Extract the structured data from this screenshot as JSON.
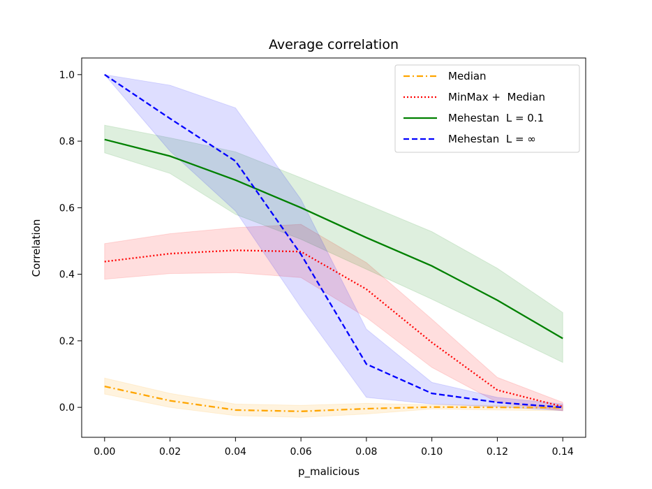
{
  "chart_data": {
    "type": "line",
    "title": "Average correlation",
    "xlabel": "p_malicious",
    "ylabel": "Correlation",
    "xlim": [
      -0.007,
      0.147
    ],
    "ylim": [
      -0.09,
      1.05
    ],
    "xticks": [
      "0.00",
      "0.02",
      "0.04",
      "0.06",
      "0.08",
      "0.10",
      "0.12",
      "0.14"
    ],
    "yticks": [
      "0.0",
      "0.2",
      "0.4",
      "0.6",
      "0.8",
      "1.0"
    ],
    "grid": false,
    "legend_position": "top-right",
    "x": [
      0.0,
      0.02,
      0.04,
      0.06,
      0.08,
      0.1,
      0.12,
      0.14
    ],
    "series": [
      {
        "name": "Median",
        "color": "#ffa500",
        "style": "dashdot",
        "values": [
          0.063,
          0.02,
          -0.008,
          -0.012,
          -0.004,
          0.001,
          0.0,
          -0.001
        ],
        "lower": [
          0.04,
          0.0,
          -0.025,
          -0.03,
          -0.02,
          -0.005,
          -0.008,
          -0.01
        ],
        "upper": [
          0.088,
          0.042,
          0.01,
          0.006,
          0.012,
          0.008,
          0.006,
          0.006
        ]
      },
      {
        "name": "MinMax +  Median",
        "color": "#ff0000",
        "style": "dotted",
        "values": [
          0.438,
          0.462,
          0.472,
          0.468,
          0.355,
          0.195,
          0.052,
          0.002
        ],
        "lower": [
          0.385,
          0.402,
          0.405,
          0.39,
          0.27,
          0.12,
          0.015,
          -0.01
        ],
        "upper": [
          0.492,
          0.522,
          0.54,
          0.55,
          0.435,
          0.265,
          0.09,
          0.015
        ]
      },
      {
        "name": "Mehestan  L = 0.1",
        "color": "#008000",
        "style": "solid",
        "values": [
          0.805,
          0.755,
          0.683,
          0.6,
          0.51,
          0.425,
          0.322,
          0.207
        ],
        "lower": [
          0.765,
          0.703,
          0.58,
          0.505,
          0.415,
          0.325,
          0.23,
          0.135
        ],
        "upper": [
          0.848,
          0.81,
          0.768,
          0.69,
          0.61,
          0.528,
          0.418,
          0.285
        ]
      },
      {
        "name": "Mehestan  L = ∞",
        "color": "#0000ff",
        "style": "dashed",
        "values": [
          1.0,
          0.868,
          0.74,
          0.46,
          0.13,
          0.042,
          0.015,
          0.0
        ],
        "lower": [
          1.0,
          0.77,
          0.59,
          0.3,
          0.03,
          0.01,
          0.002,
          -0.01
        ],
        "upper": [
          1.0,
          0.968,
          0.9,
          0.625,
          0.235,
          0.075,
          0.03,
          0.01
        ]
      }
    ]
  }
}
